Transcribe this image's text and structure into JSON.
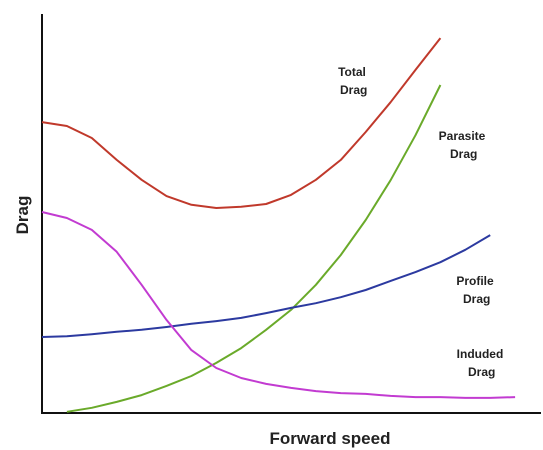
{
  "chart_data": {
    "type": "line",
    "x_label": "Forward speed",
    "y_label": "Drag",
    "x": [
      0,
      5,
      10,
      15,
      20,
      25,
      30,
      35,
      40,
      45,
      50,
      55,
      60,
      65,
      70,
      75,
      80,
      85,
      90,
      95
    ],
    "xlim": [
      0,
      100
    ],
    "ylim": [
      0,
      100
    ],
    "series": [
      {
        "name": "Total Drag",
        "color": "#c0392b",
        "values": [
          73.1,
          72.1,
          69.1,
          63.6,
          58.6,
          54.5,
          52.3,
          51.5,
          51.8,
          52.5,
          54.8,
          58.6,
          63.6,
          70.6,
          78.1,
          86.2,
          94.2,
          null,
          null,
          null
        ]
      },
      {
        "name": "Parasite Drag",
        "color": "#6aaa2a",
        "values": [
          null,
          0.3,
          1.3,
          2.8,
          4.5,
          6.8,
          9.3,
          12.6,
          16.3,
          20.9,
          25.9,
          32.2,
          39.7,
          48.5,
          58.5,
          69.8,
          82.4,
          null,
          null,
          null
        ]
      },
      {
        "name": "Profile Drag",
        "color": "#2c3aa0",
        "values": [
          19.1,
          19.3,
          19.8,
          20.4,
          20.9,
          21.6,
          22.4,
          23.1,
          23.9,
          25.1,
          26.4,
          27.6,
          29.1,
          30.9,
          33.2,
          35.4,
          37.9,
          41.0,
          44.7,
          null
        ]
      },
      {
        "name": "Induded Drag",
        "color": "#c23bd1",
        "values": [
          50.5,
          49.0,
          46.0,
          40.5,
          32.2,
          23.4,
          15.8,
          11.3,
          8.8,
          7.3,
          6.3,
          5.5,
          5.0,
          4.8,
          4.3,
          4.0,
          4.0,
          3.8,
          3.8,
          4.0
        ]
      }
    ]
  }
}
